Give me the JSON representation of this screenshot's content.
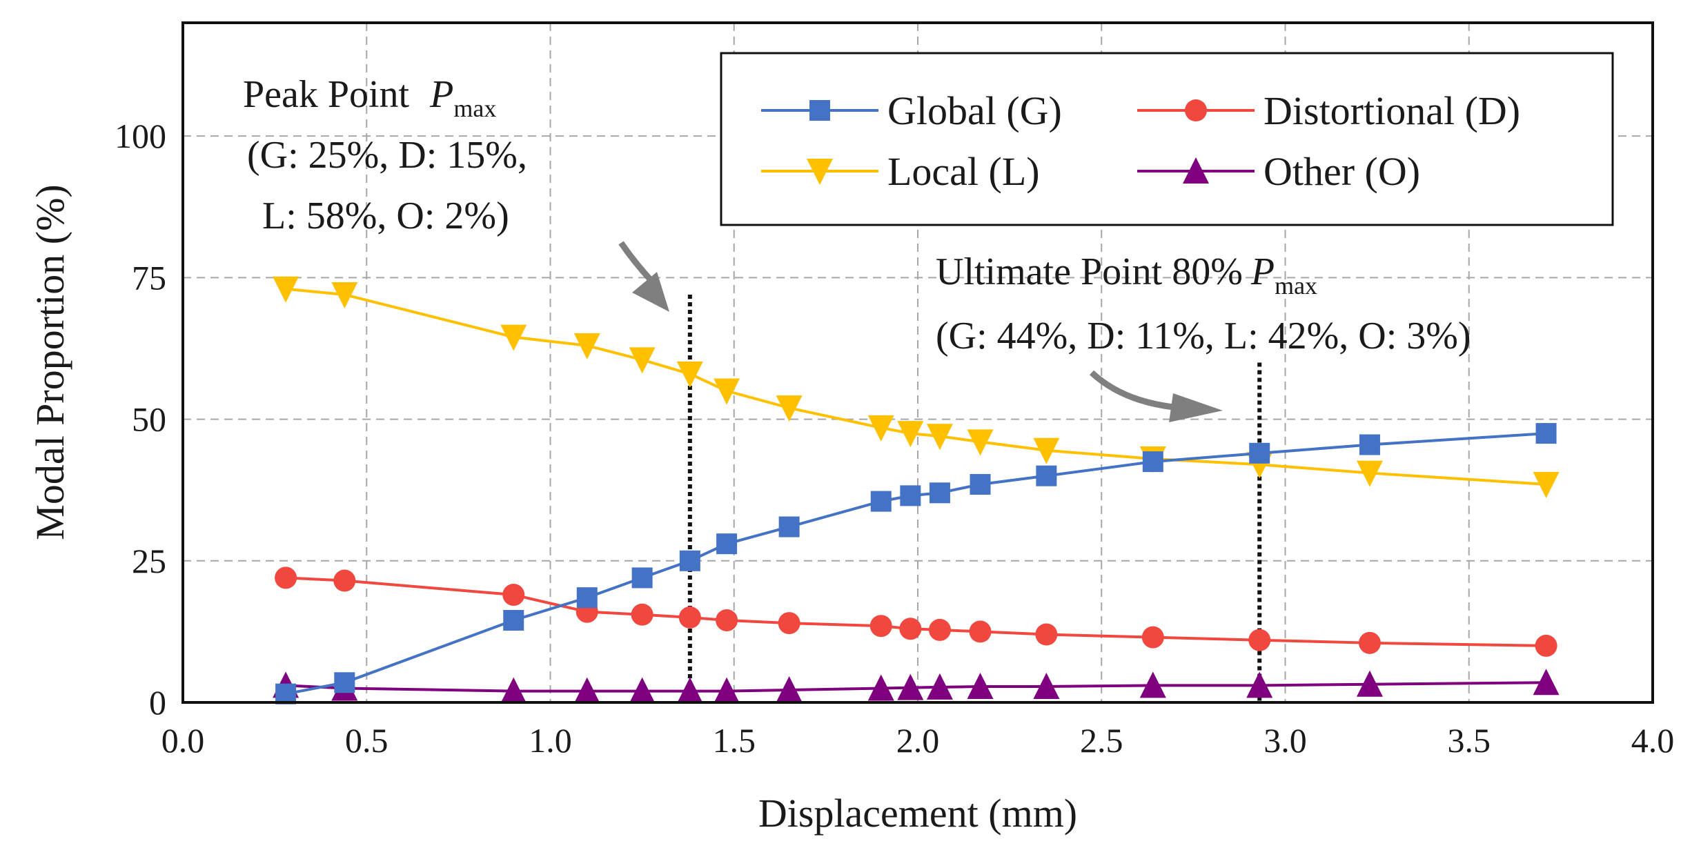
{
  "chart_data": {
    "type": "line",
    "title": "",
    "xlabel": "Displacement (mm)",
    "ylabel": "Modal Proportion (%)",
    "xlim": [
      0.0,
      4.0
    ],
    "ylim": [
      0,
      120
    ],
    "xticks": [
      0.0,
      0.5,
      1.0,
      1.5,
      2.0,
      2.5,
      3.0,
      3.5,
      4.0
    ],
    "xtick_labels": [
      "0.0",
      "0.5",
      "1.0",
      "1.5",
      "2.0",
      "2.5",
      "3.0",
      "3.5",
      "4.0"
    ],
    "yticks": [
      0,
      25,
      50,
      75,
      100
    ],
    "ytick_labels": [
      "0",
      "25",
      "50",
      "75",
      "100"
    ],
    "grid": true,
    "legend_position": "top-right",
    "x": [
      0.28,
      0.44,
      0.9,
      1.1,
      1.25,
      1.38,
      1.48,
      1.65,
      1.9,
      1.98,
      2.06,
      2.17,
      2.35,
      2.64,
      2.93,
      3.23,
      3.71
    ],
    "series": [
      {
        "name": "Global (G)",
        "color": "#4472c4",
        "marker": "square",
        "values": [
          1.5,
          3.5,
          14.5,
          18.5,
          22.0,
          25.0,
          28.0,
          31.0,
          35.5,
          36.5,
          37.0,
          38.5,
          40.0,
          42.5,
          44.0,
          45.5,
          47.5
        ]
      },
      {
        "name": "Distortional (D)",
        "color": "#f0483e",
        "marker": "circle",
        "values": [
          22.0,
          21.5,
          19.0,
          16.0,
          15.5,
          15.0,
          14.5,
          14.0,
          13.5,
          13.0,
          12.8,
          12.5,
          12.0,
          11.5,
          11.0,
          10.5,
          10.0
        ]
      },
      {
        "name": "Local (L)",
        "color": "#ffc000",
        "marker": "triangle-down",
        "values": [
          73.0,
          72.0,
          64.5,
          63.0,
          60.5,
          58.0,
          55.0,
          52.0,
          48.5,
          47.5,
          47.0,
          46.0,
          44.5,
          43.0,
          42.0,
          40.5,
          38.5
        ]
      },
      {
        "name": "Other (O)",
        "color": "#7f007f",
        "marker": "triangle-up",
        "values": [
          3.0,
          2.5,
          2.0,
          2.0,
          2.0,
          2.0,
          2.0,
          2.2,
          2.5,
          2.6,
          2.7,
          2.8,
          2.8,
          3.0,
          3.0,
          3.2,
          3.5
        ]
      }
    ],
    "vertical_markers": [
      {
        "x": 1.38,
        "y_top": 72
      },
      {
        "x": 2.93,
        "y_top": 60
      }
    ],
    "annotations": {
      "peak": {
        "title": "Peak Point",
        "symbol": "P",
        "subscript": "max",
        "line1": "(G: 25%, D: 15%,",
        "line2": "L: 58%, O: 2%)"
      },
      "ultimate": {
        "title": "Ultimate Point  80%",
        "symbol": "P",
        "subscript": "max",
        "line1": "(G: 44%, D: 11%, L: 42%, O: 3%)"
      }
    }
  }
}
